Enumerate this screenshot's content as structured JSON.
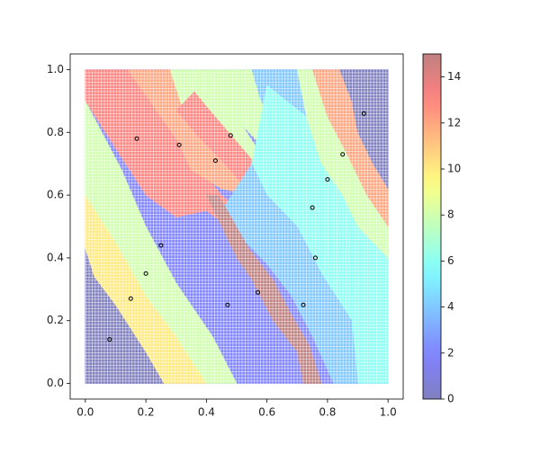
{
  "chart_data": {
    "type": "scatter",
    "xlim": [
      -0.05,
      1.05
    ],
    "ylim": [
      -0.05,
      1.05
    ],
    "xticks": [
      {
        "value": 0,
        "label": "0.0"
      },
      0.2,
      0.4,
      0.6,
      0.8,
      {
        "value": 1,
        "label": "1.0"
      }
    ],
    "yticks": [
      {
        "value": 0,
        "label": "0.0"
      },
      0.2,
      0.4,
      0.6,
      0.8,
      {
        "value": 1,
        "label": "1.0"
      }
    ],
    "colorbar": {
      "cmap": "jet",
      "alpha": 0.5,
      "clim": [
        0,
        15
      ],
      "ticks": [
        0,
        2,
        4,
        6,
        8,
        10,
        12,
        14
      ]
    },
    "regions": [
      {
        "value": 2,
        "x": [
          0,
          1,
          1,
          0
        ],
        "y": [
          0,
          0,
          1,
          1
        ]
      },
      {
        "value": 0,
        "x": [
          0,
          0.26,
          0.2,
          0.1,
          0.03,
          0
        ],
        "y": [
          0,
          0,
          0.1,
          0.25,
          0.34,
          0.43
        ]
      },
      {
        "value": 10,
        "x": [
          0,
          0.03,
          0.1,
          0.2,
          0.26,
          0.4,
          0.3,
          0.2,
          0.1,
          0
        ],
        "y": [
          0.43,
          0.34,
          0.25,
          0.1,
          0,
          0,
          0.15,
          0.28,
          0.45,
          0.6
        ]
      },
      {
        "value": 8,
        "x": [
          0,
          0.1,
          0.2,
          0.3,
          0.4,
          0.5,
          0.42,
          0.3,
          0.2,
          0.12,
          0
        ],
        "y": [
          0.6,
          0.45,
          0.28,
          0.15,
          0,
          0,
          0.15,
          0.32,
          0.5,
          0.68,
          0.9
        ]
      },
      {
        "value": 13,
        "x": [
          0,
          0.14,
          0.3,
          0.45,
          0.6,
          0.6,
          0.5,
          0.4,
          0.3,
          0.2,
          0.1,
          0
        ],
        "y": [
          1,
          1,
          0.78,
          0.6,
          0.48,
          0.4,
          0.48,
          0.55,
          0.53,
          0.6,
          0.75,
          0.9
        ]
      },
      {
        "value": 12,
        "x": [
          0.14,
          0.28,
          0.33,
          0.42,
          0.5,
          0.55,
          0.45,
          0.35,
          0.3
        ],
        "y": [
          1,
          1,
          0.85,
          0.75,
          0.68,
          0.6,
          0.62,
          0.68,
          0.78
        ]
      },
      {
        "value": 8,
        "x": [
          0.28,
          0.43,
          0.45,
          0.52,
          0.6,
          0.55,
          0.45,
          0.38,
          0.33
        ],
        "y": [
          1,
          1,
          0.9,
          0.82,
          0.7,
          0.68,
          0.76,
          0.82,
          0.85
        ]
      },
      {
        "value": 13,
        "x": [
          0.36,
          0.42,
          0.5,
          0.58,
          0.6,
          0.55,
          0.46,
          0.38,
          0.3
        ],
        "y": [
          0.93,
          0.86,
          0.77,
          0.68,
          0.55,
          0.6,
          0.7,
          0.78,
          0.87
        ]
      },
      {
        "value": 8,
        "x": [
          0.43,
          0.55,
          0.58,
          0.65,
          0.7,
          0.62,
          0.52,
          0.45
        ],
        "y": [
          1,
          1,
          0.9,
          0.8,
          0.7,
          0.72,
          0.82,
          0.9
        ]
      },
      {
        "value": 4,
        "x": [
          0.55,
          0.7,
          0.73,
          0.78,
          0.75,
          0.7,
          0.65,
          0.58
        ],
        "y": [
          1,
          1,
          0.85,
          0.7,
          0.68,
          0.7,
          0.8,
          0.9
        ]
      },
      {
        "value": 6,
        "x": [
          0.6,
          0.73,
          0.78,
          0.85,
          0.9,
          1,
          1,
          0.9,
          0.88,
          0.78,
          0.7,
          0.6,
          0.55
        ],
        "y": [
          0.95,
          0.85,
          0.7,
          0.6,
          0.5,
          0.4,
          0,
          0,
          0.2,
          0.35,
          0.5,
          0.6,
          0.7
        ]
      },
      {
        "value": 8,
        "x": [
          0.7,
          0.75,
          0.8,
          0.87,
          0.93,
          1,
          1,
          0.9,
          0.85,
          0.78,
          0.73
        ],
        "y": [
          1,
          1,
          0.85,
          0.72,
          0.6,
          0.5,
          0.4,
          0.5,
          0.6,
          0.7,
          0.85
        ]
      },
      {
        "value": 12,
        "x": [
          0.75,
          0.84,
          0.88,
          0.9,
          0.95,
          1,
          1,
          0.93,
          0.87,
          0.8
        ],
        "y": [
          1,
          1,
          0.9,
          0.8,
          0.7,
          0.62,
          0.5,
          0.6,
          0.72,
          0.85
        ]
      },
      {
        "value": 0,
        "x": [
          0.84,
          1,
          1,
          0.95,
          0.9,
          0.88
        ],
        "y": [
          1,
          1,
          0.62,
          0.7,
          0.8,
          0.9
        ]
      },
      {
        "value": 4,
        "x": [
          0.55,
          0.6,
          0.7,
          0.78,
          0.88,
          0.9,
          0.82,
          0.75,
          0.68,
          0.6,
          0.5,
          0.45
        ],
        "y": [
          0.7,
          0.6,
          0.5,
          0.35,
          0.2,
          0,
          0,
          0.15,
          0.28,
          0.38,
          0.48,
          0.55
        ]
      },
      {
        "value": 15,
        "x": [
          0.4,
          0.45,
          0.5,
          0.55,
          0.62,
          0.7,
          0.72,
          0.78,
          0.74,
          0.68,
          0.62,
          0.54,
          0.47,
          0.44
        ],
        "y": [
          0.6,
          0.5,
          0.4,
          0.33,
          0.2,
          0.1,
          0,
          0,
          0.12,
          0.22,
          0.33,
          0.43,
          0.55,
          0.6
        ]
      }
    ],
    "series": [
      {
        "color": "#000000",
        "x": [
          0.08,
          0.15,
          0.2,
          0.25,
          0.17,
          0.31,
          0.43,
          0.48,
          0.47,
          0.57,
          0.72,
          0.76,
          0.75,
          0.8,
          0.85,
          0.92
        ],
        "y": [
          0.14,
          0.27,
          0.35,
          0.44,
          0.78,
          0.76,
          0.71,
          0.79,
          0.25,
          0.29,
          0.25,
          0.4,
          0.56,
          0.65,
          0.73,
          0.86
        ]
      }
    ]
  }
}
